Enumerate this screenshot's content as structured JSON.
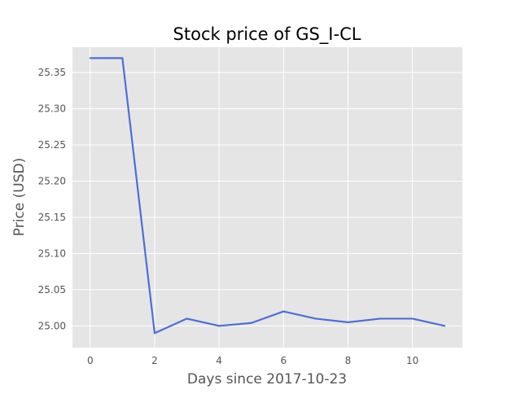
{
  "chart_data": {
    "type": "line",
    "title": "Stock price of GS_I-CL",
    "xlabel": "Days since 2017-10-23",
    "ylabel": "Price (USD)",
    "x": [
      0,
      1,
      2,
      3,
      4,
      5,
      6,
      7,
      8,
      9,
      10,
      11
    ],
    "series": [
      {
        "values": [
          25.37,
          25.37,
          24.99,
          25.01,
          25.0,
          25.004,
          25.02,
          25.01,
          25.005,
          25.01,
          25.01,
          25.0
        ],
        "color": "#4c6fd8"
      }
    ],
    "xlim": [
      -0.55,
      11.55
    ],
    "ylim": [
      24.97,
      25.385
    ],
    "x_ticks": [
      "0",
      "2",
      "4",
      "6",
      "8",
      "10"
    ],
    "y_ticks": [
      "25.00",
      "25.05",
      "25.10",
      "25.15",
      "25.20",
      "25.25",
      "25.30",
      "25.35"
    ],
    "grid": true,
    "style": {
      "plot_background": "#e5e5e5",
      "grid_color": "#ffffff"
    }
  }
}
